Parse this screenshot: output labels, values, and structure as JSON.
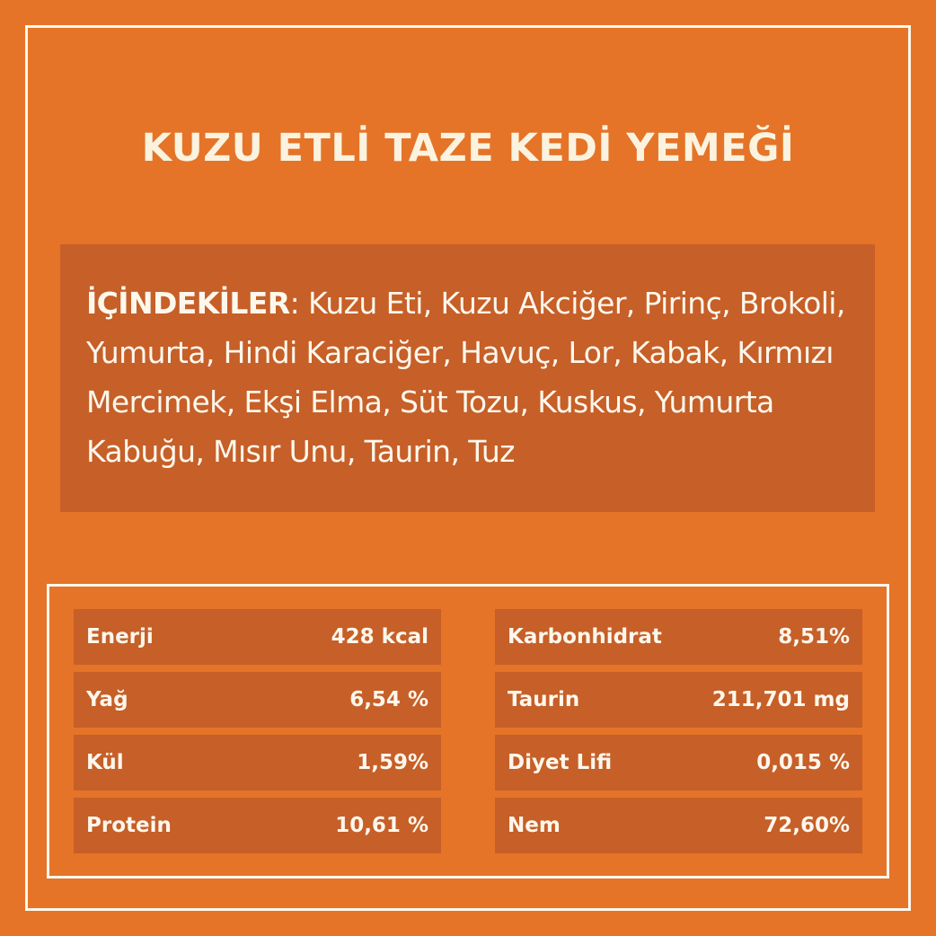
{
  "title": "KUZU ETLİ TAZE KEDİ YEMEĞİ",
  "ingredients": {
    "label": "İÇİNDEKİLER",
    "text": ": Kuzu Eti, Kuzu Akciğer, Pirinç, Brokoli, Yumurta, Hindi Karaciğer, Havuç, Lor, Kabak, Kırmızı Mercimek, Ekşi Elma, Süt Tozu, Kuskus, Yumurta Kabuğu, Mısır Unu, Taurin, Tuz"
  },
  "nutrition": {
    "left": [
      {
        "name": "Enerji",
        "value": "428 kcal"
      },
      {
        "name": "Yağ",
        "value": "6,54 %"
      },
      {
        "name": "Kül",
        "value": "1,59%"
      },
      {
        "name": "Protein",
        "value": "10,61 %"
      }
    ],
    "right": [
      {
        "name": "Karbonhidrat",
        "value": "8,51%"
      },
      {
        "name": "Taurin",
        "value": "211,701 mg"
      },
      {
        "name": "Diyet Lifi",
        "value": "0,015 %"
      },
      {
        "name": "Nem",
        "value": "72,60%"
      }
    ]
  },
  "colors": {
    "background": "#e57428",
    "panel": "#c65f28",
    "text": "#fdf7ec"
  }
}
